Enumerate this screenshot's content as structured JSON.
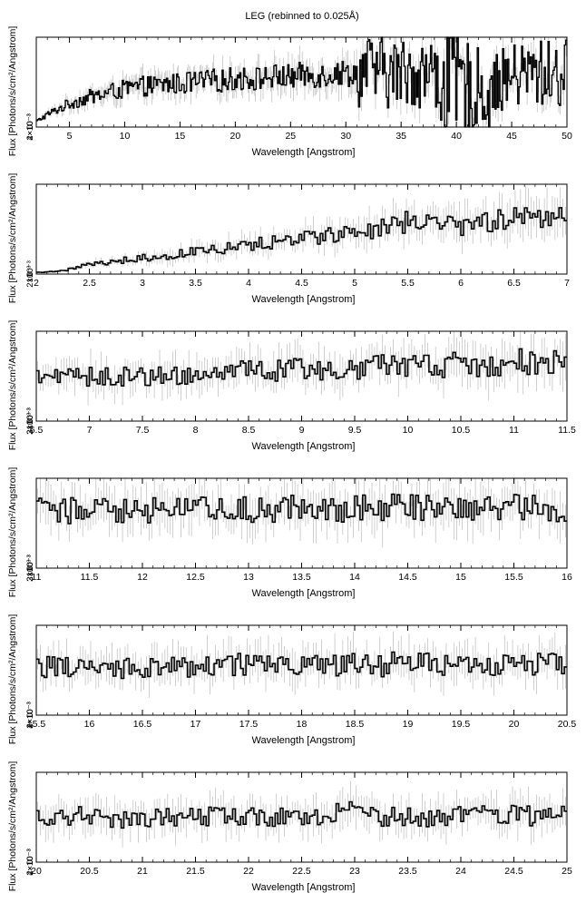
{
  "page_title": "LEG (rebinned to 0.025Å)",
  "chart_data": [
    {
      "type": "line",
      "xlabel": "Wavelength [Angstrom]",
      "ylabel": "Flux [Photons/s/cm²/Angstrom]",
      "xlim": [
        2,
        50
      ],
      "ylim": [
        0,
        0.005
      ],
      "x_ticks": [
        "5",
        "10",
        "15",
        "20",
        "25",
        "30",
        "35",
        "40",
        "45",
        "50"
      ],
      "y_ticks": [
        "0",
        "2×10⁻³",
        "4×10⁻³"
      ],
      "x": [
        2,
        3,
        4,
        5,
        6,
        7,
        8,
        9,
        10,
        11,
        12,
        13,
        14,
        15,
        16,
        17,
        18,
        19,
        20,
        21,
        22,
        23,
        24,
        25,
        26,
        27,
        28,
        29,
        30,
        31,
        32,
        33,
        34,
        35,
        36,
        37,
        38,
        39,
        40,
        41,
        42,
        43,
        44,
        45,
        46,
        47,
        48,
        49,
        50
      ],
      "y": [
        0.0003,
        0.0007,
        0.001,
        0.0013,
        0.0015,
        0.0017,
        0.0018,
        0.002,
        0.0021,
        0.0022,
        0.0023,
        0.0023,
        0.0024,
        0.0024,
        0.0025,
        0.0025,
        0.0026,
        0.0026,
        0.0027,
        0.0027,
        0.0027,
        0.0028,
        0.0028,
        0.0028,
        0.0029,
        0.0029,
        0.0029,
        0.003,
        0.003,
        0.003,
        0.0031,
        0.0031,
        0.003,
        0.003,
        0.0031,
        0.003,
        0.0029,
        0.0028,
        0.0025,
        0.0022,
        0.002,
        0.0022,
        0.0026,
        0.0028,
        0.0029,
        0.003,
        0.003,
        0.0029,
        0.003
      ]
    },
    {
      "type": "line",
      "xlabel": "Wavelength [Angstrom]",
      "ylabel": "Flux [Photons/s/cm²/Angstrom]",
      "xlim": [
        2,
        7
      ],
      "ylim": [
        0,
        0.0028
      ],
      "x_ticks": [
        "2",
        "2.5",
        "3",
        "3.5",
        "4",
        "4.5",
        "5",
        "5.5",
        "6",
        "6.5",
        "7"
      ],
      "y_ticks": [
        "0",
        "10⁻³",
        "2×10⁻³"
      ],
      "x": [
        2.0,
        2.25,
        2.5,
        2.75,
        3.0,
        3.25,
        3.5,
        3.75,
        4.0,
        4.25,
        4.5,
        4.75,
        5.0,
        5.25,
        5.5,
        5.75,
        6.0,
        6.25,
        6.5,
        6.75,
        7.0
      ],
      "y": [
        5e-05,
        0.0001,
        0.0003,
        0.0004,
        0.0005,
        0.0006,
        0.0007,
        0.0008,
        0.0009,
        0.001,
        0.0011,
        0.0012,
        0.0013,
        0.0014,
        0.0016,
        0.0015,
        0.0015,
        0.0016,
        0.0017,
        0.0018,
        0.0018
      ]
    },
    {
      "type": "line",
      "xlabel": "Wavelength [Angstrom]",
      "ylabel": "Flux [Photons/s/cm²/Angstrom]",
      "xlim": [
        6.5,
        11.5
      ],
      "ylim": [
        0,
        0.0038
      ],
      "x_ticks": [
        "6.5",
        "7",
        "7.5",
        "8",
        "8.5",
        "9",
        "9.5",
        "10",
        "10.5",
        "11",
        "11.5"
      ],
      "y_ticks": [
        "0",
        "10⁻³",
        "2×10⁻³",
        "3×10⁻³"
      ],
      "x": [
        6.5,
        6.75,
        7.0,
        7.25,
        7.5,
        7.75,
        8.0,
        8.25,
        8.5,
        8.75,
        9.0,
        9.25,
        9.5,
        9.75,
        10.0,
        10.25,
        10.5,
        10.75,
        11.0,
        11.25,
        11.5
      ],
      "y": [
        0.0019,
        0.0018,
        0.0019,
        0.0019,
        0.0019,
        0.002,
        0.0019,
        0.002,
        0.0021,
        0.0021,
        0.0022,
        0.0022,
        0.0022,
        0.0023,
        0.0023,
        0.0023,
        0.0024,
        0.0024,
        0.0025,
        0.0025,
        0.0025
      ]
    },
    {
      "type": "line",
      "xlabel": "Wavelength [Angstrom]",
      "ylabel": "Flux [Photons/s/cm²/Angstrom]",
      "xlim": [
        11,
        16
      ],
      "ylim": [
        0,
        0.0038
      ],
      "x_ticks": [
        "11",
        "11.5",
        "12",
        "12.5",
        "13",
        "13.5",
        "14",
        "14.5",
        "15",
        "15.5",
        "16"
      ],
      "y_ticks": [
        "0",
        "10⁻³",
        "2×10⁻³",
        "3×10⁻³"
      ],
      "x": [
        11.0,
        11.25,
        11.5,
        11.75,
        12.0,
        12.25,
        12.5,
        12.75,
        13.0,
        13.25,
        13.5,
        13.75,
        14.0,
        14.25,
        14.5,
        14.75,
        15.0,
        15.25,
        15.5,
        15.75,
        16.0
      ],
      "y": [
        0.0025,
        0.0024,
        0.0025,
        0.0025,
        0.0024,
        0.0025,
        0.0025,
        0.0024,
        0.0025,
        0.0025,
        0.0026,
        0.0025,
        0.0025,
        0.0026,
        0.0026,
        0.0025,
        0.0026,
        0.0025,
        0.0026,
        0.0026,
        0.0025
      ]
    },
    {
      "type": "line",
      "xlabel": "Wavelength [Angstrom]",
      "ylabel": "Flux [Photons/s/cm²/Angstrom]",
      "xlim": [
        15.5,
        20.5
      ],
      "ylim": [
        0,
        0.0048
      ],
      "x_ticks": [
        "15.5",
        "16",
        "16.5",
        "17",
        "17.5",
        "18",
        "18.5",
        "19",
        "19.5",
        "20",
        "20.5"
      ],
      "y_ticks": [
        "0",
        "2×10⁻³",
        "4×10⁻³"
      ],
      "x": [
        15.5,
        15.75,
        16.0,
        16.25,
        16.5,
        16.75,
        17.0,
        17.25,
        17.5,
        17.75,
        18.0,
        18.25,
        18.5,
        18.75,
        19.0,
        19.25,
        19.5,
        19.75,
        20.0,
        20.25,
        20.5
      ],
      "y": [
        0.0026,
        0.0026,
        0.0026,
        0.0025,
        0.0026,
        0.0026,
        0.0026,
        0.0027,
        0.0027,
        0.0027,
        0.0026,
        0.0027,
        0.0027,
        0.0026,
        0.003,
        0.0026,
        0.0027,
        0.0026,
        0.0027,
        0.0027,
        0.0027
      ]
    },
    {
      "type": "line",
      "xlabel": "Wavelength [Angstrom]",
      "ylabel": "Flux [Photons/s/cm²/Angstrom]",
      "xlim": [
        20,
        25
      ],
      "ylim": [
        0,
        0.0055
      ],
      "x_ticks": [
        "20",
        "20.5",
        "21",
        "21.5",
        "22",
        "22.5",
        "23",
        "23.5",
        "24",
        "24.5",
        "25"
      ],
      "y_ticks": [
        "0",
        "2×10⁻³",
        "4×10⁻³"
      ],
      "x": [
        20.0,
        20.25,
        20.5,
        20.75,
        21.0,
        21.25,
        21.5,
        21.75,
        22.0,
        22.25,
        22.5,
        22.75,
        23.0,
        23.25,
        23.5,
        23.75,
        24.0,
        24.25,
        24.5,
        24.75,
        25.0
      ],
      "y": [
        0.0027,
        0.0028,
        0.0028,
        0.0027,
        0.0027,
        0.0028,
        0.0027,
        0.0028,
        0.0028,
        0.0027,
        0.0028,
        0.0029,
        0.0031,
        0.0028,
        0.0027,
        0.0028,
        0.0029,
        0.0028,
        0.0029,
        0.0028,
        0.0028
      ]
    }
  ]
}
